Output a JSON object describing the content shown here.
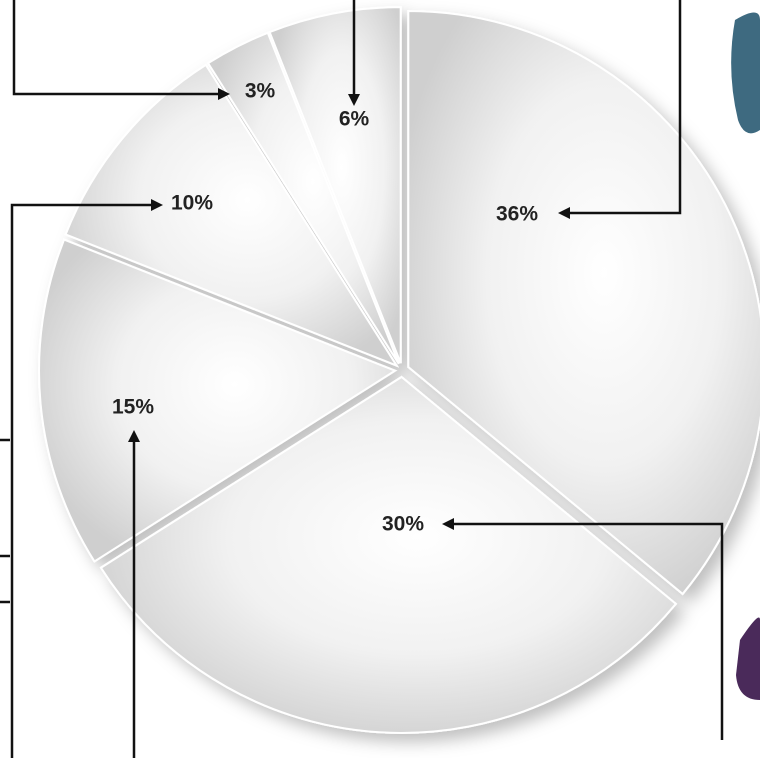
{
  "chart_data": {
    "type": "pie",
    "values": [
      36,
      30,
      15,
      10,
      3,
      6
    ],
    "value_labels": [
      "36%",
      "30%",
      "15%",
      "10%",
      "3%",
      "6%"
    ]
  }
}
